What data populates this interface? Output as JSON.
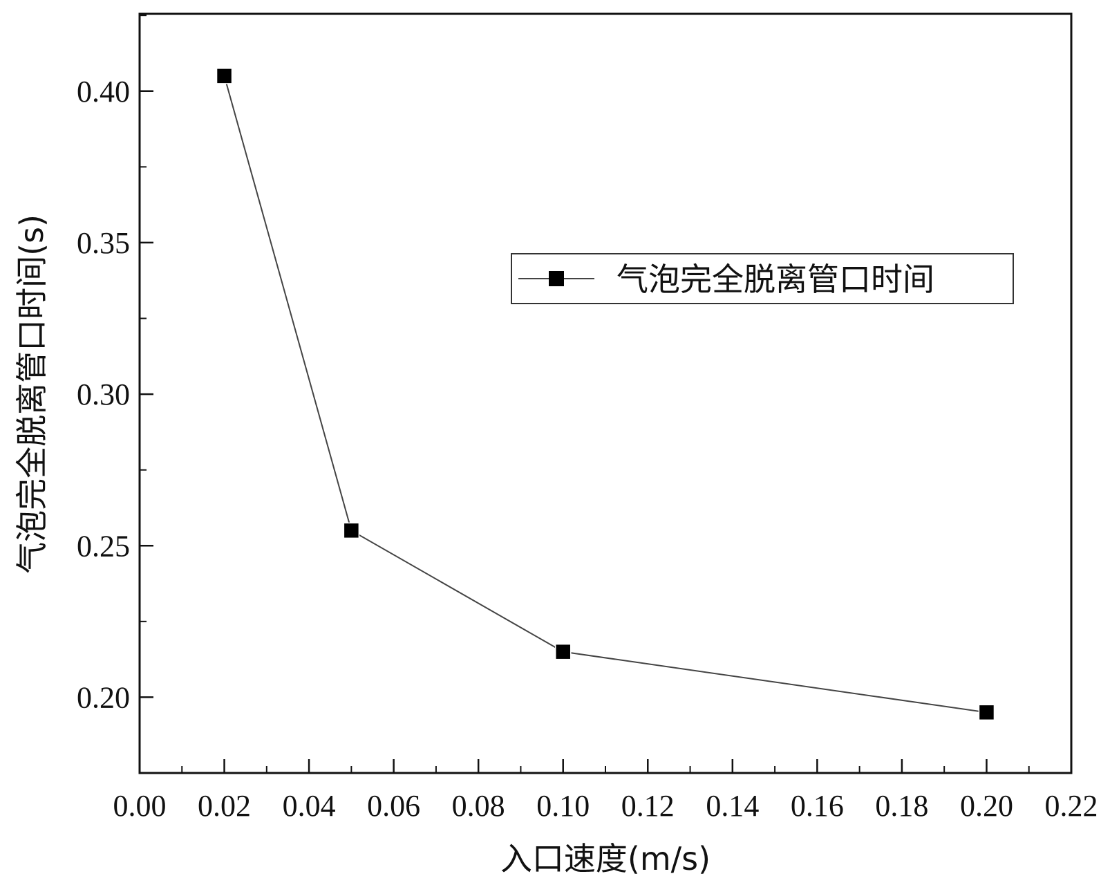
{
  "chart_data": {
    "type": "line",
    "title": "",
    "xlabel": "入口速度(m/s)",
    "ylabel": "气泡完全脱离管口时间(s)",
    "xlim": [
      0.0,
      0.22
    ],
    "ylim": [
      0.175,
      0.4255
    ],
    "x_ticks": [
      "0.00",
      "0.02",
      "0.04",
      "0.06",
      "0.08",
      "0.10",
      "0.12",
      "0.14",
      "0.16",
      "0.18",
      "0.20",
      "0.22"
    ],
    "y_ticks": [
      "0.20",
      "0.25",
      "0.30",
      "0.35",
      "0.40"
    ],
    "grid": false,
    "legend_position": "upper-right",
    "series": [
      {
        "name": "气泡完全脱离管口时间",
        "marker": "square",
        "color": "#000000",
        "x": [
          0.02,
          0.05,
          0.1,
          0.2
        ],
        "y": [
          0.405,
          0.255,
          0.215,
          0.195
        ]
      }
    ]
  }
}
